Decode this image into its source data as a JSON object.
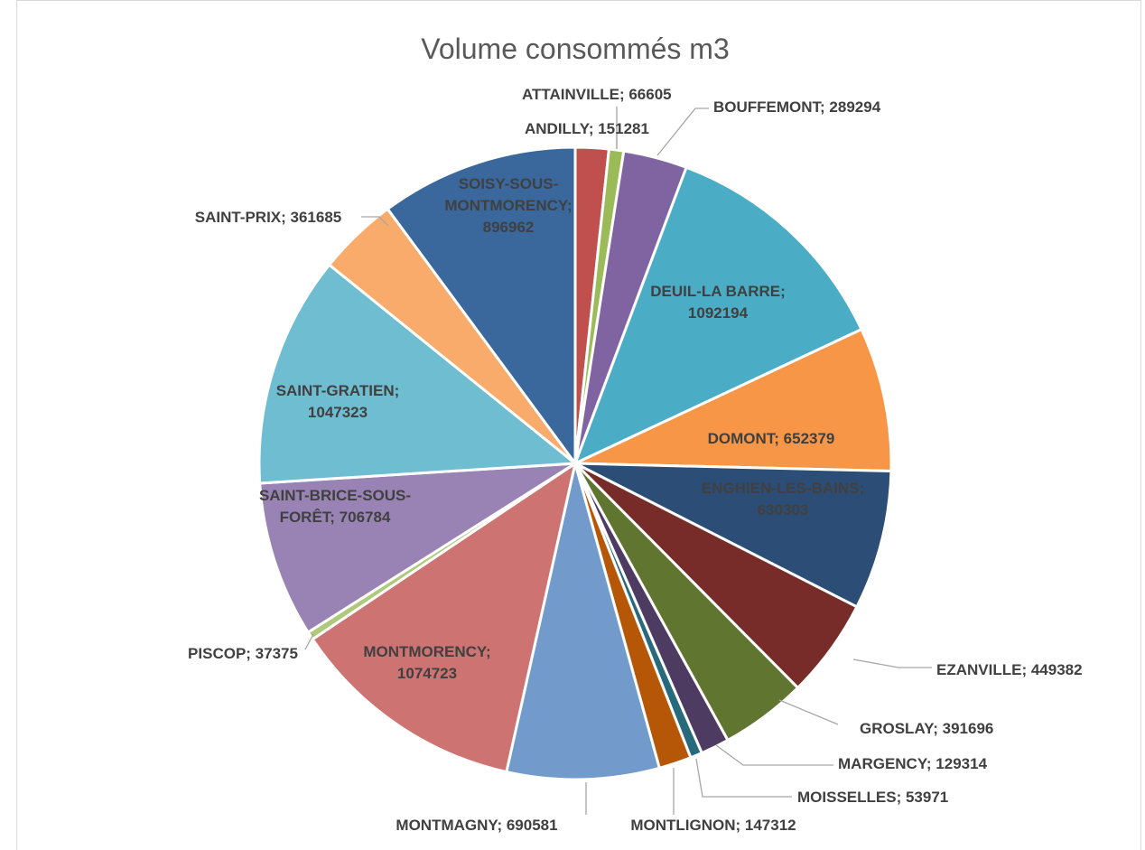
{
  "chart_data": {
    "type": "pie",
    "title": "Volume consommés m3",
    "label_separator": "; ",
    "slices": [
      {
        "name": "ANDILLY",
        "value": 151281,
        "color": "#c0504d"
      },
      {
        "name": "ATTAINVILLE",
        "value": 66605,
        "color": "#9bbb59"
      },
      {
        "name": "BOUFFEMONT",
        "value": 289294,
        "color": "#8064a2"
      },
      {
        "name": "DEUIL-LA BARRE",
        "value": 1092194,
        "color": "#4bacc6"
      },
      {
        "name": "DOMONT",
        "value": 652379,
        "color": "#f79646"
      },
      {
        "name": "ENGHIEN-LES-BAINS",
        "value": 630303,
        "color": "#2c4d75"
      },
      {
        "name": "EZANVILLE",
        "value": 449382,
        "color": "#772c2a"
      },
      {
        "name": "GROSLAY",
        "value": 391696,
        "color": "#5f7530"
      },
      {
        "name": "MARGENCY",
        "value": 129314,
        "color": "#4d3b62"
      },
      {
        "name": "MOISSELLES",
        "value": 53971,
        "color": "#276a7c"
      },
      {
        "name": "MONTLIGNON",
        "value": 147312,
        "color": "#b65708"
      },
      {
        "name": "MONTMAGNY",
        "value": 690581,
        "color": "#729aca"
      },
      {
        "name": "MONTMORENCY",
        "value": 1074723,
        "color": "#cd7371"
      },
      {
        "name": "PISCOP",
        "value": 37375,
        "color": "#afc97a"
      },
      {
        "name": "SAINT-BRICE-SOUS-FORÊT",
        "value": 706784,
        "color": "#9983b5"
      },
      {
        "name": "SAINT-GRATIEN",
        "value": 1047323,
        "color": "#6fbdd1"
      },
      {
        "name": "SAINT-PRIX",
        "value": 361685,
        "color": "#f9ab6b"
      },
      {
        "name": "SOISY-SOUS-MONTMORENCY",
        "value": 896962,
        "color": "#3a679c"
      }
    ],
    "legend": "none",
    "data_labels": "category; value"
  }
}
